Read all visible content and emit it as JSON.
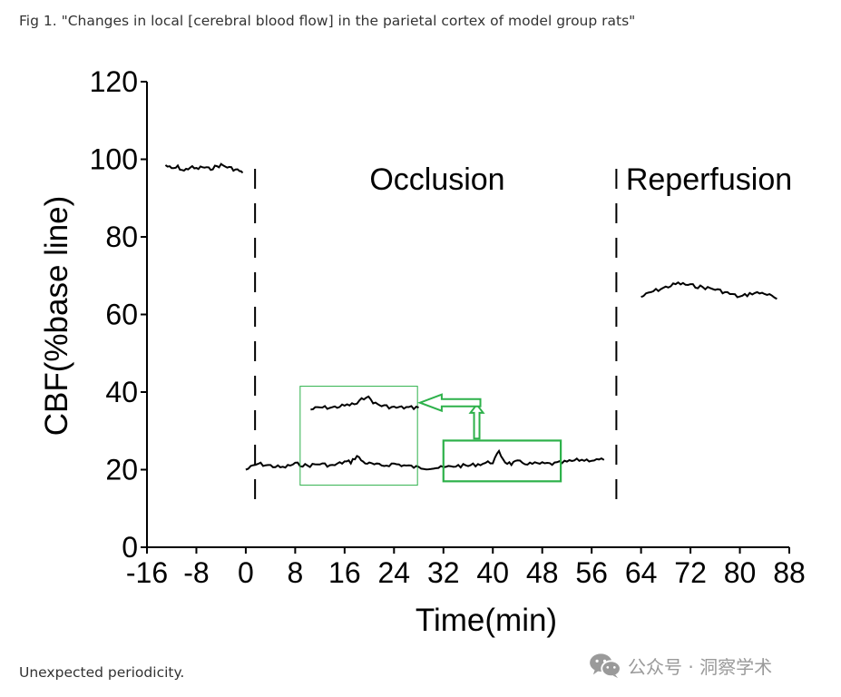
{
  "caption": "Fig 1. \"Changes in local [cerebral blood flow] in the parietal cortex of model group rats\"",
  "footnote": "Unexpected periodicity.",
  "watermark": {
    "text": "公众号 · 洞察学术",
    "icon": "wechat-icon",
    "color": "#9a9a9a"
  },
  "chart_data": {
    "type": "line",
    "title": "",
    "xlabel": "Time(min)",
    "ylabel": "CBF(%base line)",
    "xlim": [
      -16,
      88
    ],
    "ylim": [
      0,
      120
    ],
    "x_ticks": [
      -16,
      -8,
      0,
      8,
      16,
      24,
      32,
      40,
      48,
      56,
      64,
      72,
      80,
      88
    ],
    "x_tick_labels": [
      "-16",
      "-8",
      "0",
      "8",
      "16",
      "24",
      "32",
      "40",
      "48",
      "56",
      "64",
      "72",
      "80",
      "88"
    ],
    "y_ticks": [
      0,
      20,
      40,
      60,
      80,
      100,
      120
    ],
    "y_tick_labels": [
      "0",
      "20",
      "40",
      "60",
      "80",
      "100",
      "120"
    ],
    "grid": false,
    "line_color": "#000000",
    "phase_lines": [
      {
        "x": 1.5,
        "style": "dashed"
      },
      {
        "x": 60,
        "style": "dashed"
      }
    ],
    "annotations": [
      {
        "text": "Occlusion",
        "x": 31,
        "y": 95
      },
      {
        "text": "Reperfusion",
        "x": 75,
        "y": 95
      }
    ],
    "series": [
      {
        "x": [
          -13,
          -12,
          -11,
          -10,
          -9,
          -8,
          -7,
          -6,
          -5,
          -4,
          -3,
          -2,
          -1,
          -0.5
        ],
        "values": [
          98.5,
          97.5,
          98,
          97,
          98,
          97.5,
          98,
          97.5,
          98,
          98.5,
          98,
          97.5,
          97,
          96.5
        ]
      },
      {
        "x": [
          0,
          2,
          4,
          6,
          8,
          10,
          12,
          14,
          16,
          17,
          18,
          19,
          20,
          22,
          24,
          26,
          28,
          30,
          32,
          34,
          36,
          38,
          40,
          41,
          42,
          43,
          44,
          46,
          48,
          50,
          52,
          54,
          56,
          58
        ],
        "values": [
          20,
          21.5,
          21,
          20.5,
          21.5,
          21,
          21.5,
          21,
          22,
          22,
          23.5,
          22,
          21.5,
          21,
          21.5,
          21,
          20.5,
          20.5,
          20.5,
          21,
          21,
          21.5,
          22,
          24.5,
          22,
          21.5,
          22,
          21.5,
          21.5,
          21.5,
          22,
          22.5,
          22.5,
          22.5
        ]
      },
      {
        "x": [
          64,
          66,
          68,
          70,
          72,
          74,
          76,
          78,
          80,
          82,
          84,
          86
        ],
        "values": [
          64.5,
          66,
          67,
          68,
          67.5,
          67,
          66.5,
          65.5,
          64.5,
          65.5,
          65.5,
          64
        ]
      }
    ],
    "inset": {
      "source_range": [
        32,
        51
      ],
      "x": [
        10.5,
        12,
        14,
        16,
        18,
        19.5,
        21,
        22,
        24,
        26,
        28
      ],
      "values": [
        35.5,
        36,
        36,
        36.5,
        37,
        39,
        37,
        36.5,
        36,
        36,
        36
      ],
      "box_color": "#2db14a",
      "arrow_color": "#2db14a"
    }
  }
}
